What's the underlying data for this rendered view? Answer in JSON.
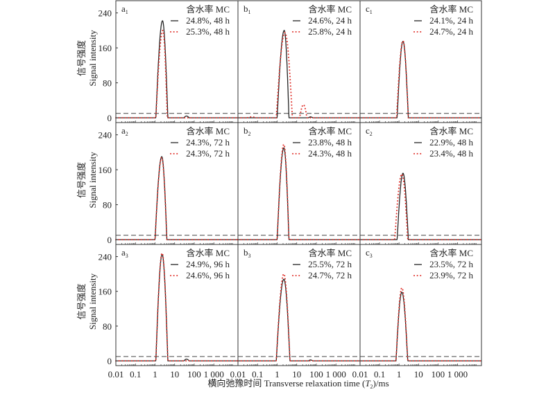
{
  "chart_data": {
    "type": "line",
    "xlabel": "横向弛豫时间 Transverse relaxation time (T2)/ms",
    "xlabel_parts": {
      "pre": "横向弛豫时间 Transverse relaxation time (",
      "var": "T",
      "sub": "2",
      "post": ")/ms"
    },
    "ylabel_cn": "信号强度",
    "ylabel_en": "Signal intensity",
    "x_scale": "log",
    "xlim": [
      0.01,
      17000
    ],
    "ylim": [
      -11,
      268
    ],
    "x_ticks": [
      0.01,
      0.1,
      1,
      10,
      100,
      1000
    ],
    "x_tick_labels": [
      "0.01",
      "0.1",
      "1",
      "10",
      "100",
      "1 000"
    ],
    "y_ticks": [
      0,
      80,
      160,
      240
    ],
    "y_tick_labels": [
      "0",
      "80",
      "160",
      "240"
    ],
    "threshold_line": 10,
    "legend_title": "含水率 MC",
    "legend_placement": "top-right",
    "colors": {
      "black": "#222222",
      "red": "#e0302a",
      "dash": "#444444"
    },
    "panels": [
      {
        "id": "a",
        "sub": "1",
        "series": [
          {
            "name": "24.8%, 48 h",
            "style": "solid",
            "peaks": [
              {
                "lo": 1.1,
                "at": 2.4,
                "hi": 4.5,
                "h": 222
              },
              {
                "lo": 30,
                "at": 40,
                "hi": 55,
                "h": 4
              }
            ]
          },
          {
            "name": "25.3%, 48 h",
            "style": "dotted",
            "peaks": [
              {
                "lo": 1.1,
                "at": 2.5,
                "hi": 4.2,
                "h": 200
              }
            ]
          }
        ]
      },
      {
        "id": "b",
        "sub": "1",
        "series": [
          {
            "name": "24.6%, 24 h",
            "style": "solid",
            "peaks": [
              {
                "lo": 1.0,
                "at": 2.3,
                "hi": 4.0,
                "h": 200
              },
              {
                "lo": 40,
                "at": 50,
                "hi": 65,
                "h": 2
              }
            ]
          },
          {
            "name": "25.8%, 24 h",
            "style": "dotted",
            "peaks": [
              {
                "lo": 0.9,
                "at": 2.5,
                "hi": 6.0,
                "h": 195
              },
              {
                "lo": 14,
                "at": 22,
                "hi": 33,
                "h": 30
              },
              {
                "lo": 0.03,
                "at": 0.05,
                "hi": 0.08,
                "h": 2
              }
            ]
          }
        ]
      },
      {
        "id": "c",
        "sub": "1",
        "series": [
          {
            "name": "24.1%, 24 h",
            "style": "solid",
            "peaks": [
              {
                "lo": 0.8,
                "at": 1.6,
                "hi": 3.0,
                "h": 175
              }
            ]
          },
          {
            "name": "24.7%, 24 h",
            "style": "dotted",
            "peaks": [
              {
                "lo": 0.75,
                "at": 1.6,
                "hi": 3.0,
                "h": 176
              }
            ]
          }
        ]
      },
      {
        "id": "a",
        "sub": "2",
        "series": [
          {
            "name": "24.3%, 72 h",
            "style": "solid",
            "peaks": [
              {
                "lo": 1.0,
                "at": 2.2,
                "hi": 4.0,
                "h": 190
              }
            ]
          },
          {
            "name": "24.3%, 72 h",
            "style": "dotted",
            "peaks": [
              {
                "lo": 1.0,
                "at": 2.2,
                "hi": 4.0,
                "h": 188
              }
            ]
          }
        ]
      },
      {
        "id": "b",
        "sub": "2",
        "series": [
          {
            "name": "23.8%, 48 h",
            "style": "solid",
            "peaks": [
              {
                "lo": 1.0,
                "at": 2.2,
                "hi": 4.0,
                "h": 210
              }
            ]
          },
          {
            "name": "24.3%, 48 h",
            "style": "dotted",
            "peaks": [
              {
                "lo": 1.0,
                "at": 2.2,
                "hi": 4.0,
                "h": 218
              }
            ]
          }
        ]
      },
      {
        "id": "c",
        "sub": "2",
        "series": [
          {
            "name": "22.9%, 48 h",
            "style": "solid",
            "peaks": [
              {
                "lo": 0.8,
                "at": 1.6,
                "hi": 3.0,
                "h": 152
              }
            ]
          },
          {
            "name": "23.4%, 48 h",
            "style": "dotted",
            "peaks": [
              {
                "lo": 0.6,
                "at": 1.4,
                "hi": 2.8,
                "h": 150
              }
            ]
          }
        ]
      },
      {
        "id": "a",
        "sub": "3",
        "series": [
          {
            "name": "24.9%, 96 h",
            "style": "solid",
            "peaks": [
              {
                "lo": 1.1,
                "at": 2.3,
                "hi": 4.5,
                "h": 245
              },
              {
                "lo": 30,
                "at": 40,
                "hi": 55,
                "h": 4
              }
            ]
          },
          {
            "name": "24.6%, 96 h",
            "style": "dotted",
            "peaks": [
              {
                "lo": 1.1,
                "at": 2.3,
                "hi": 4.5,
                "h": 248
              }
            ]
          }
        ]
      },
      {
        "id": "b",
        "sub": "3",
        "series": [
          {
            "name": "25.5%, 72 h",
            "style": "solid",
            "peaks": [
              {
                "lo": 0.9,
                "at": 2.2,
                "hi": 4.5,
                "h": 188
              },
              {
                "lo": 40,
                "at": 50,
                "hi": 65,
                "h": 2
              }
            ]
          },
          {
            "name": "24.7%, 72 h",
            "style": "dotted",
            "peaks": [
              {
                "lo": 0.9,
                "at": 2.2,
                "hi": 4.5,
                "h": 200
              }
            ]
          }
        ]
      },
      {
        "id": "c",
        "sub": "3",
        "series": [
          {
            "name": "23.5%, 72 h",
            "style": "solid",
            "peaks": [
              {
                "lo": 0.7,
                "at": 1.4,
                "hi": 2.8,
                "h": 158
              }
            ]
          },
          {
            "name": "23.9%, 72 h",
            "style": "dotted",
            "peaks": [
              {
                "lo": 0.7,
                "at": 1.4,
                "hi": 2.8,
                "h": 168
              }
            ]
          }
        ]
      }
    ]
  }
}
